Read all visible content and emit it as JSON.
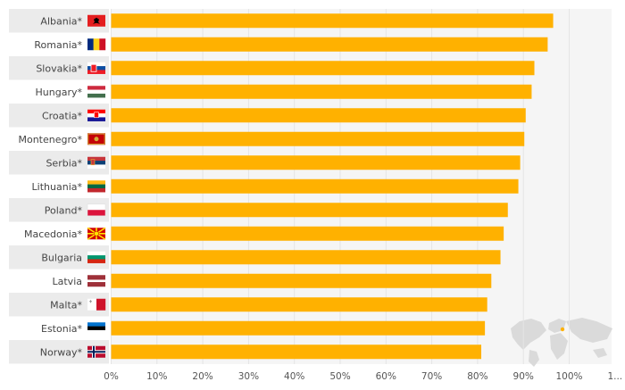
{
  "chart_data": {
    "type": "bar",
    "orientation": "horizontal",
    "categories": [
      "Albania*",
      "Romania*",
      "Slovakia*",
      "Hungary*",
      "Croatia*",
      "Montenegro*",
      "Serbia*",
      "Lithuania*",
      "Poland*",
      "Macedonia*",
      "Bulgaria",
      "Latvia",
      "Malta*",
      "Estonia*",
      "Norway*"
    ],
    "values": [
      96.5,
      95.3,
      92.4,
      91.8,
      90.5,
      90.2,
      89.3,
      88.9,
      86.6,
      85.7,
      85.0,
      83.0,
      82.1,
      81.6,
      80.8
    ],
    "flags": [
      "albania-flag",
      "romania-flag",
      "slovakia-flag",
      "hungary-flag",
      "croatia-flag",
      "montenegro-flag",
      "serbia-flag",
      "lithuania-flag",
      "poland-flag",
      "macedonia-flag",
      "bulgaria-flag",
      "latvia-flag",
      "malta-flag",
      "estonia-flag",
      "norway-flag"
    ],
    "xticks": [
      "0%",
      "10%",
      "20%",
      "30%",
      "40%",
      "50%",
      "60%",
      "70%",
      "80%",
      "90%",
      "100%",
      "1..."
    ],
    "xlim": [
      0,
      110
    ],
    "bar_color": "#FFB100",
    "grid": true,
    "legend": "none"
  }
}
